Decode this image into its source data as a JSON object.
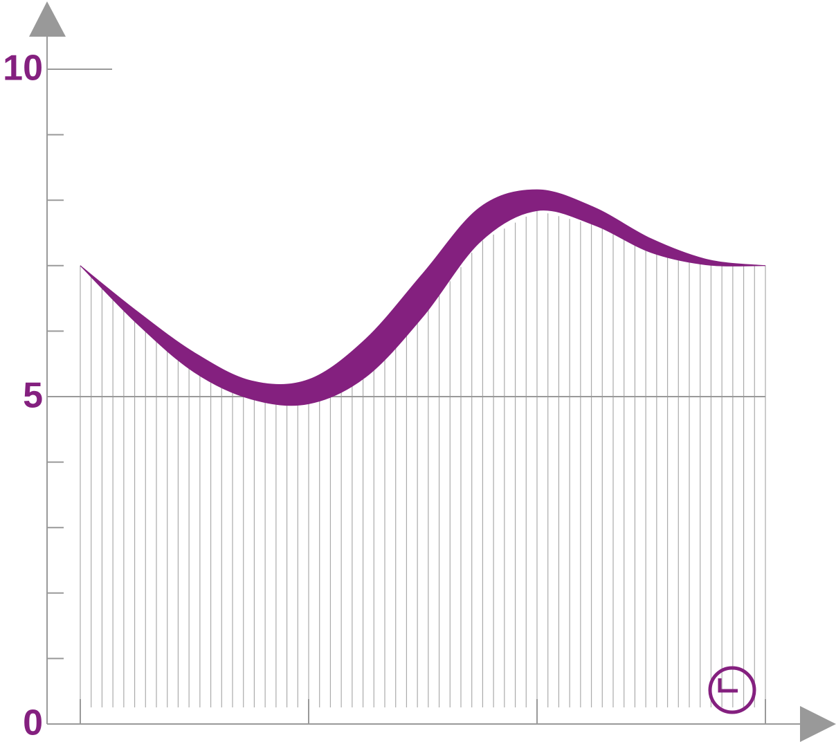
{
  "chart_data": {
    "type": "band",
    "x": [
      0,
      0.25,
      0.5,
      0.75,
      1,
      1.25,
      1.5,
      1.75,
      2,
      2.25,
      2.5,
      2.75,
      3
    ],
    "series": [
      {
        "color": "#84207f",
        "values": [
          7.0,
          6.3,
          5.67,
          5.24,
          5.26,
          5.88,
          6.88,
          7.89,
          8.16,
          7.89,
          7.41,
          7.09,
          7.0
        ]
      },
      {
        "color": "#84207f",
        "values": [
          7.0,
          6.11,
          5.37,
          4.96,
          4.89,
          5.3,
          6.22,
          7.36,
          7.84,
          7.62,
          7.2,
          7.01,
          7.0
        ]
      }
    ],
    "xlim": [
      0,
      3
    ],
    "xticks": [
      0,
      1,
      2,
      3
    ],
    "ylim": [
      0,
      10
    ],
    "yticks": [
      0,
      5,
      10
    ],
    "minor_yticks": [
      1,
      2,
      3,
      4,
      6,
      7,
      8,
      9
    ]
  }
}
